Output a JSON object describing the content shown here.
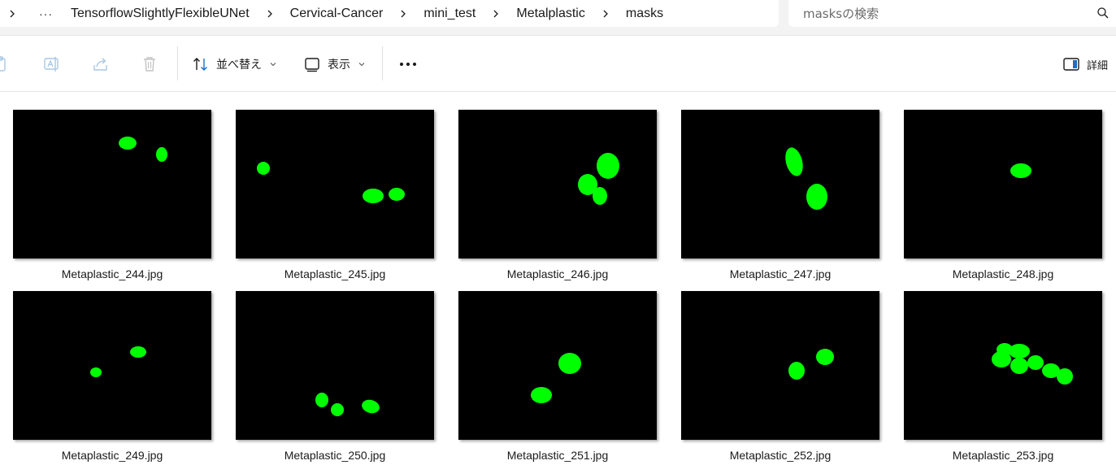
{
  "breadcrumb": {
    "overflow": "···",
    "items": [
      "TensorflowSlightlyFlexibleUNet",
      "Cervical-Cancer",
      "mini_test",
      "Metalplastic",
      "masks"
    ]
  },
  "search": {
    "placeholder": "masksの検索"
  },
  "toolbar": {
    "sort_label": "並べ替え",
    "view_label": "表示",
    "details_label": "詳細"
  },
  "colors": {
    "mask_green": "#00ff00",
    "thumb_bg": "#000000"
  },
  "files": [
    {
      "name": "Metaplastic_244.jpg"
    },
    {
      "name": "Metaplastic_245.jpg"
    },
    {
      "name": "Metaplastic_246.jpg"
    },
    {
      "name": "Metaplastic_247.jpg"
    },
    {
      "name": "Metaplastic_248.jpg"
    },
    {
      "name": "Metaplastic_249.jpg"
    },
    {
      "name": "Metaplastic_250.jpg"
    },
    {
      "name": "Metaplastic_251.jpg"
    },
    {
      "name": "Metaplastic_252.jpg"
    },
    {
      "name": "Metaplastic_253.jpg"
    }
  ]
}
